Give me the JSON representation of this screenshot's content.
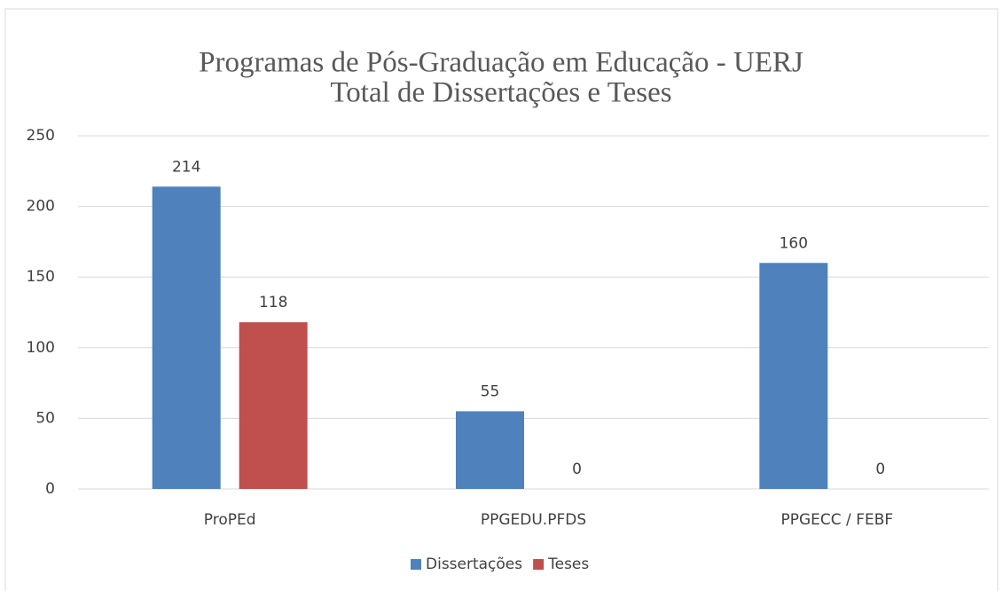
{
  "chart_data": {
    "type": "bar",
    "title": [
      "Programas de Pós-Graduação em Educação - UERJ",
      "Total de Dissertações e Teses"
    ],
    "categories": [
      "ProPEd",
      "PPGEDU.PFDS",
      "PPGECC / FEBF"
    ],
    "series": [
      {
        "name": "Dissertações",
        "color": "#4f81bd",
        "values": [
          214,
          55,
          160
        ]
      },
      {
        "name": "Teses",
        "color": "#c0504d",
        "values": [
          118,
          0,
          0
        ]
      }
    ],
    "ylim": [
      0,
      250
    ],
    "yticks": [
      0,
      50,
      100,
      150,
      200,
      250
    ],
    "grid": true,
    "legend": "bottom"
  }
}
